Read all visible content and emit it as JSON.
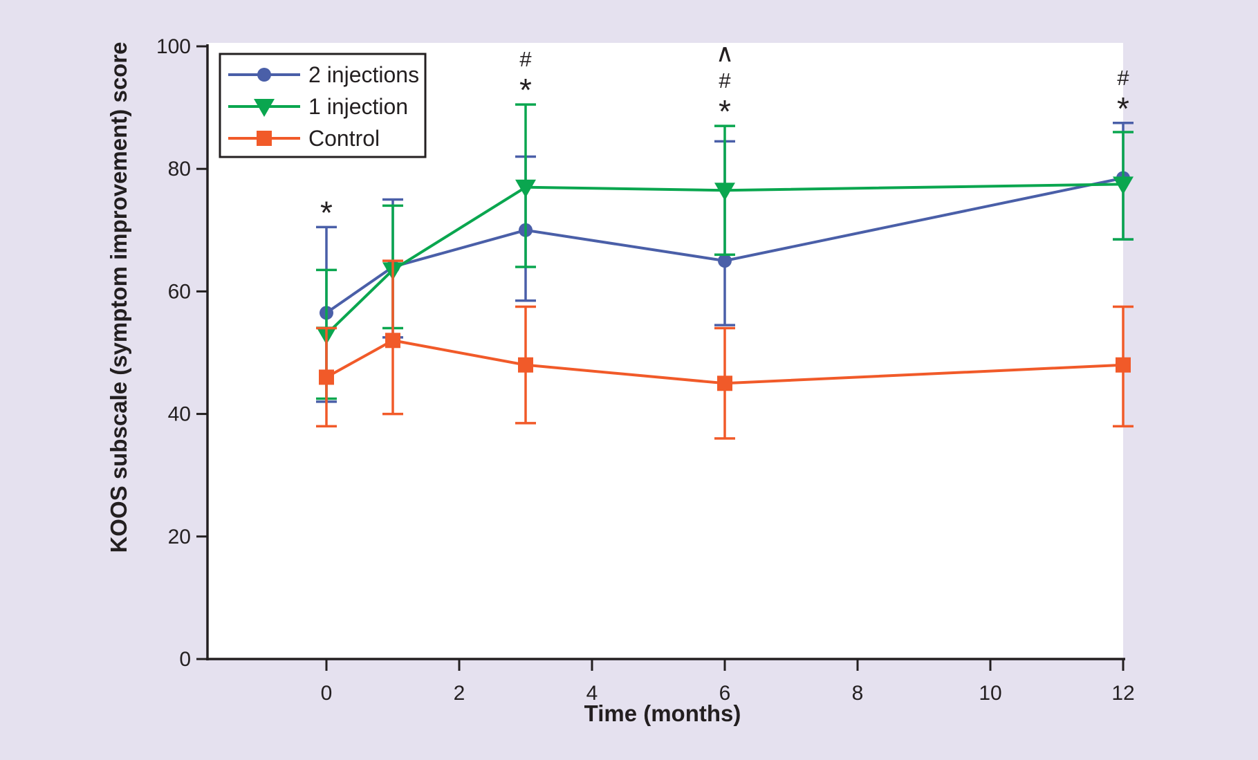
{
  "figure": {
    "background_color": "#E5E1EF",
    "plot_background_color": "#FFFFFF",
    "axis_color": "#231F20"
  },
  "chart_data": {
    "type": "line",
    "title": "",
    "xlabel": "Time (months)",
    "ylabel": "KOOS subscale (symptom improvement) score",
    "x_months": [
      0,
      1,
      3,
      6,
      12
    ],
    "xticks": [
      0,
      2,
      4,
      6,
      8,
      10,
      12
    ],
    "yticks": [
      0,
      20,
      40,
      60,
      80,
      100
    ],
    "xlim": [
      -1.8,
      12
    ],
    "ylim": [
      0,
      100
    ],
    "grid": false,
    "legend_position": "top-left",
    "series": [
      {
        "name": "2 injections",
        "color": "#4A5FA8",
        "marker": "circle",
        "values": [
          56.5,
          64,
          70,
          65,
          78.5
        ],
        "err_low": [
          42,
          52.5,
          58.5,
          54.5,
          68.5
        ],
        "err_high": [
          70.5,
          75,
          82,
          84.5,
          87.5
        ]
      },
      {
        "name": "1 injection",
        "color": "#0AA64F",
        "marker": "triangle-down",
        "values": [
          53,
          63.5,
          77,
          76.5,
          77.5
        ],
        "err_low": [
          42.5,
          54,
          64,
          66,
          68.5
        ],
        "err_high": [
          63.5,
          74,
          90.5,
          87,
          86
        ]
      },
      {
        "name": "Control",
        "color": "#F15A29",
        "marker": "square",
        "values": [
          46,
          52,
          48,
          45,
          48
        ],
        "err_low": [
          38,
          40,
          38.5,
          36,
          38
        ],
        "err_high": [
          54,
          65,
          57.5,
          54,
          57.5
        ]
      }
    ],
    "annotations": [
      {
        "month": 0,
        "symbols_top_to_bottom": [
          "*"
        ]
      },
      {
        "month": 3,
        "symbols_top_to_bottom": [
          "#",
          "*"
        ]
      },
      {
        "month": 6,
        "symbols_top_to_bottom": [
          "^",
          "#",
          "*"
        ]
      },
      {
        "month": 12,
        "symbols_top_to_bottom": [
          "#",
          "*"
        ]
      }
    ]
  }
}
